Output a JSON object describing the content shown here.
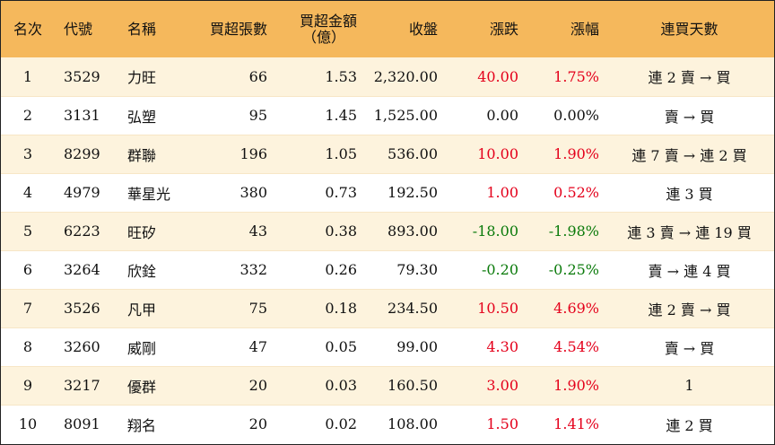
{
  "headers": {
    "rank": "名次",
    "code": "代號",
    "name": "名稱",
    "net_buy_lots": "買超張數",
    "net_buy_amount_line1": "買超金額",
    "net_buy_amount_line2": "（億）",
    "close": "收盤",
    "change": "漲跌",
    "change_pct": "漲幅",
    "streak": "連買天數"
  },
  "rows": [
    {
      "rank": "1",
      "code": "3529",
      "name": "力旺",
      "lots": "66",
      "amount": "1.53",
      "close": "2,320.00",
      "change": "40.00",
      "pct": "1.75%",
      "dir": "up",
      "streak": "連 2 賣 → 買"
    },
    {
      "rank": "2",
      "code": "3131",
      "name": "弘塑",
      "lots": "95",
      "amount": "1.45",
      "close": "1,525.00",
      "change": "0.00",
      "pct": "0.00%",
      "dir": "flat",
      "streak": "賣 → 買"
    },
    {
      "rank": "3",
      "code": "8299",
      "name": "群聯",
      "lots": "196",
      "amount": "1.05",
      "close": "536.00",
      "change": "10.00",
      "pct": "1.90%",
      "dir": "up",
      "streak": "連 7 賣 → 連 2 買"
    },
    {
      "rank": "4",
      "code": "4979",
      "name": "華星光",
      "lots": "380",
      "amount": "0.73",
      "close": "192.50",
      "change": "1.00",
      "pct": "0.52%",
      "dir": "up",
      "streak": "連 3 買"
    },
    {
      "rank": "5",
      "code": "6223",
      "name": "旺矽",
      "lots": "43",
      "amount": "0.38",
      "close": "893.00",
      "change": "-18.00",
      "pct": "-1.98%",
      "dir": "down",
      "streak": "連 3 賣 → 連 19 買"
    },
    {
      "rank": "6",
      "code": "3264",
      "name": "欣銓",
      "lots": "332",
      "amount": "0.26",
      "close": "79.30",
      "change": "-0.20",
      "pct": "-0.25%",
      "dir": "down",
      "streak": "賣 → 連 4 買"
    },
    {
      "rank": "7",
      "code": "3526",
      "name": "凡甲",
      "lots": "75",
      "amount": "0.18",
      "close": "234.50",
      "change": "10.50",
      "pct": "4.69%",
      "dir": "up",
      "streak": "連 2 賣 → 買"
    },
    {
      "rank": "8",
      "code": "3260",
      "name": "威剛",
      "lots": "47",
      "amount": "0.05",
      "close": "99.00",
      "change": "4.30",
      "pct": "4.54%",
      "dir": "up",
      "streak": "賣 → 買"
    },
    {
      "rank": "9",
      "code": "3217",
      "name": "優群",
      "lots": "20",
      "amount": "0.03",
      "close": "160.50",
      "change": "3.00",
      "pct": "1.90%",
      "dir": "up",
      "streak": "1"
    },
    {
      "rank": "10",
      "code": "8091",
      "name": "翔名",
      "lots": "20",
      "amount": "0.02",
      "close": "108.00",
      "change": "1.50",
      "pct": "1.41%",
      "dir": "up",
      "streak": "連 2 買"
    }
  ],
  "colors": {
    "header_bg": "#f5b85c",
    "odd_row_bg": "#fdf3dd",
    "even_row_bg": "#ffffff",
    "up": "#e4001b",
    "down": "#0a7a0a"
  }
}
